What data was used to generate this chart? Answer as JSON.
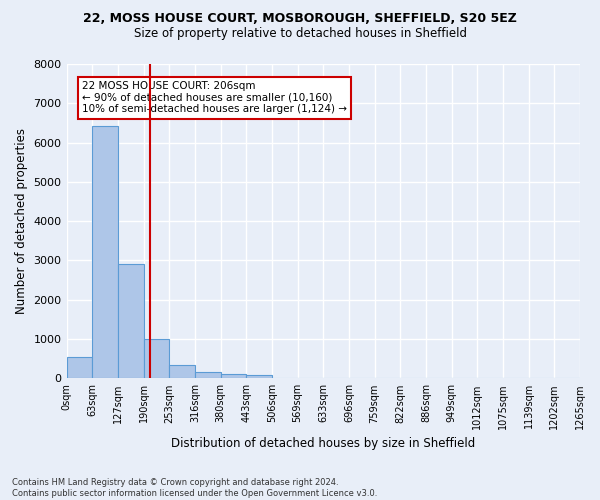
{
  "title_line1": "22, MOSS HOUSE COURT, MOSBOROUGH, SHEFFIELD, S20 5EZ",
  "title_line2": "Size of property relative to detached houses in Sheffield",
  "xlabel": "Distribution of detached houses by size in Sheffield",
  "ylabel": "Number of detached properties",
  "bin_labels": [
    "0sqm",
    "63sqm",
    "127sqm",
    "190sqm",
    "253sqm",
    "316sqm",
    "380sqm",
    "443sqm",
    "506sqm",
    "569sqm",
    "633sqm",
    "696sqm",
    "759sqm",
    "822sqm",
    "886sqm",
    "949sqm",
    "1012sqm",
    "1075sqm",
    "1139sqm",
    "1202sqm",
    "1265sqm"
  ],
  "bar_heights": [
    550,
    6430,
    2920,
    990,
    330,
    155,
    110,
    75,
    0,
    0,
    0,
    0,
    0,
    0,
    0,
    0,
    0,
    0,
    0,
    0
  ],
  "bar_color": "#aec6e8",
  "bar_edge_color": "#5b9bd5",
  "annotation_line1": "22 MOSS HOUSE COURT: 206sqm",
  "annotation_line2": "← 90% of detached houses are smaller (10,160)",
  "annotation_line3": "10% of semi-detached houses are larger (1,124) →",
  "vline_color": "#cc0000",
  "annotation_box_color": "#cc0000",
  "background_color": "#e8eef8",
  "grid_color": "#ffffff",
  "footnote": "Contains HM Land Registry data © Crown copyright and database right 2024.\nContains public sector information licensed under the Open Government Licence v3.0.",
  "ylim": [
    0,
    8000
  ],
  "yticks": [
    0,
    1000,
    2000,
    3000,
    4000,
    5000,
    6000,
    7000,
    8000
  ]
}
